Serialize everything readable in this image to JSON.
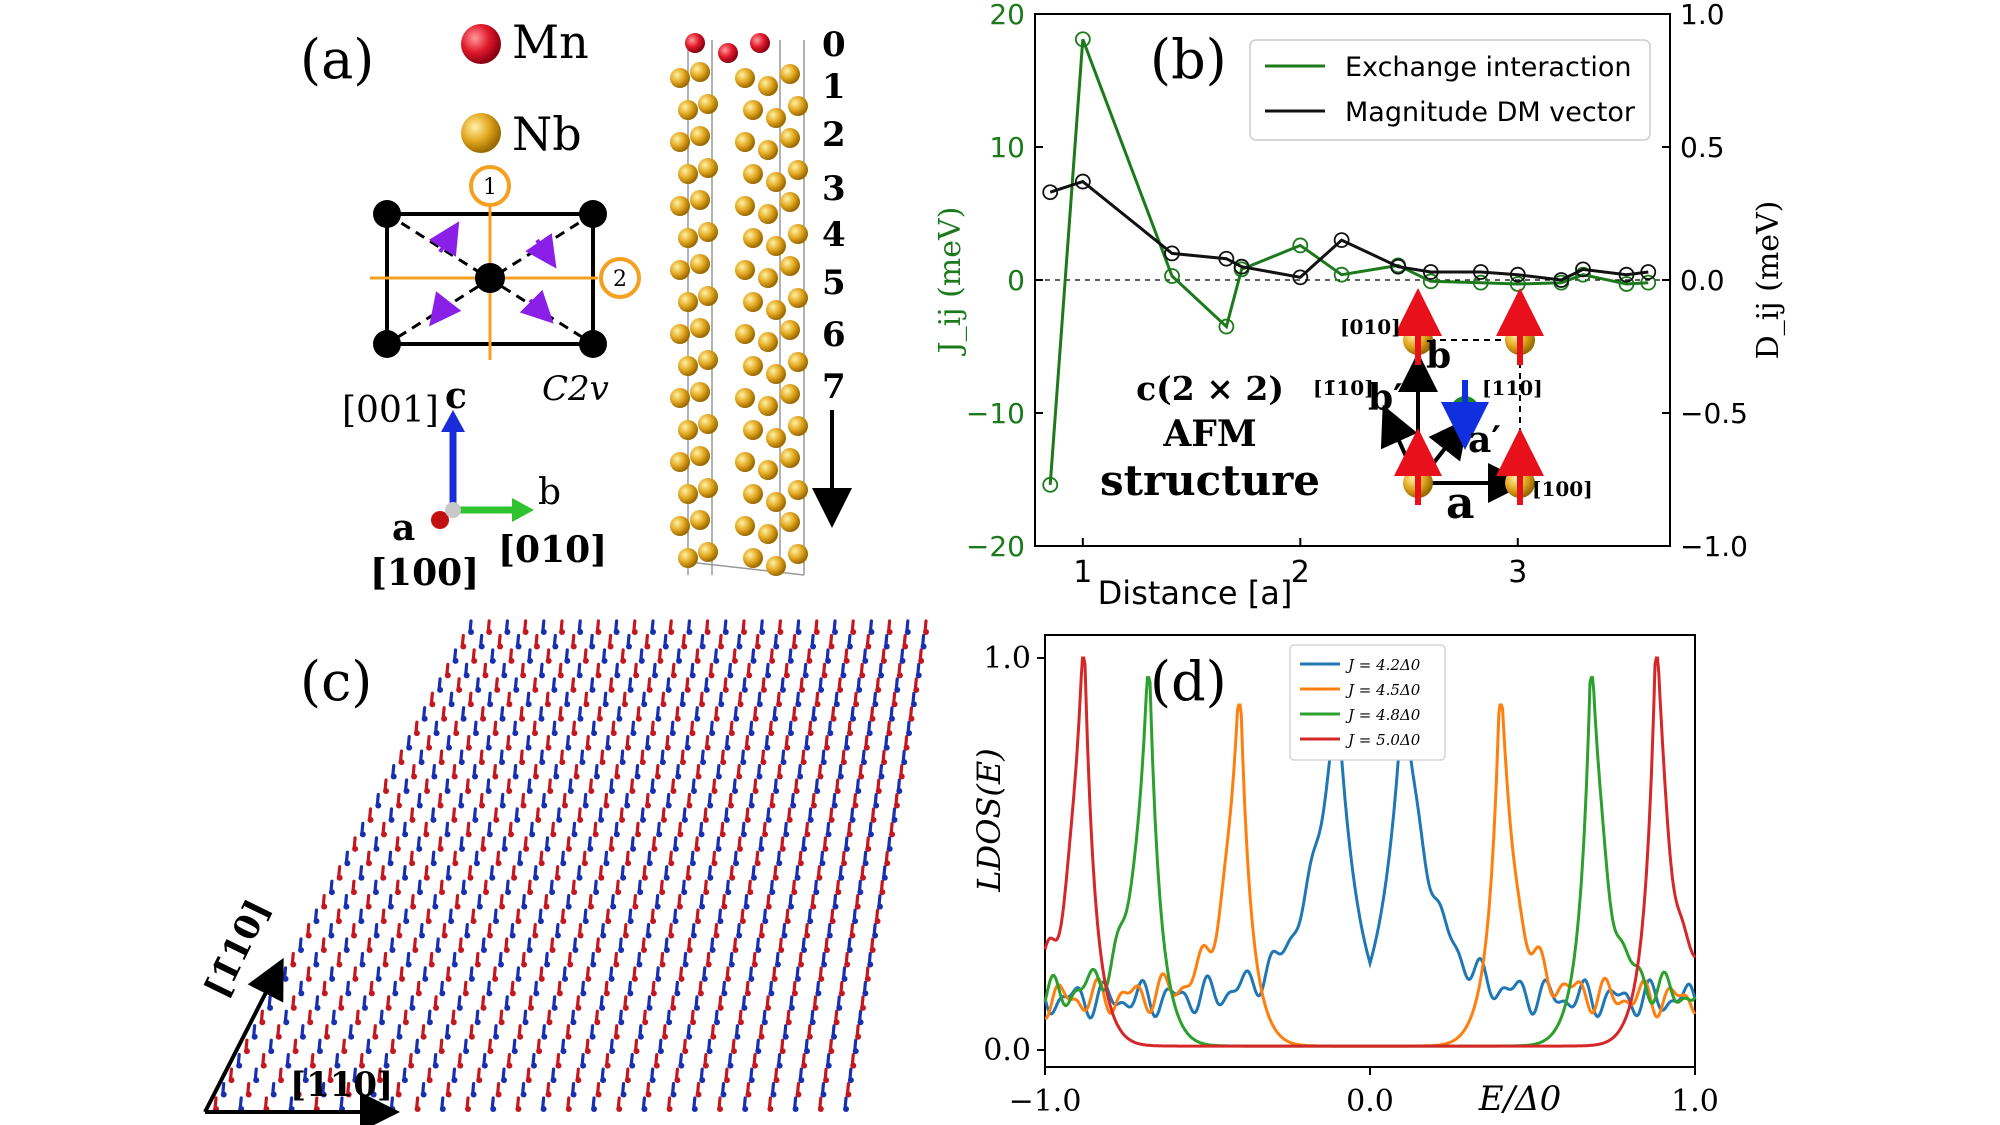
{
  "panel_labels": {
    "a": "(a)",
    "b": "(b)",
    "c": "(c)",
    "d": "(d)"
  },
  "panel_a": {
    "legend": [
      {
        "label": "Mn",
        "color": "#d8182a"
      },
      {
        "label": "Nb",
        "color": "#e3a820"
      }
    ],
    "symmetry_label": "C2v",
    "neighbor_1": "1",
    "neighbor_2": "2",
    "axes": {
      "c_letter": "c",
      "c_dir": "[001]",
      "b_letter": "b",
      "b_dir": "[010]",
      "a_letter": "a",
      "a_dir": "[100]"
    },
    "layers": [
      "0",
      "1",
      "2",
      "3",
      "4",
      "5",
      "6",
      "7"
    ]
  },
  "panel_c": {
    "dir_1": "[1̄10]",
    "dir_2": "[110]"
  },
  "chart_data": [
    {
      "type": "line",
      "panel": "b",
      "xlabel": "Distance [a]",
      "ylabel_left": "J_ij (meV)",
      "ylabel_right": "D_ij (meV)",
      "ylim_left": [
        -20,
        20
      ],
      "ylim_right": [
        -1.0,
        1.0
      ],
      "xlim": [
        0.78,
        3.7
      ],
      "xticks": [
        "1",
        "2",
        "3"
      ],
      "yticks_left": [
        "20",
        "10",
        "0",
        "−10",
        "−20"
      ],
      "yticks_right": [
        "1.0",
        "0.5",
        "0.0",
        "−0.5",
        "−1.0"
      ],
      "series": [
        {
          "name": "Exchange interaction",
          "color": "#1c7a1c",
          "axis": "left",
          "x": [
            0.85,
            1.0,
            1.41,
            1.66,
            1.73,
            2.0,
            2.19,
            2.45,
            2.6,
            2.83,
            3.0,
            3.2,
            3.3,
            3.5,
            3.6
          ],
          "y": [
            -15.4,
            18.1,
            0.3,
            -3.5,
            0.8,
            2.6,
            0.4,
            1.1,
            -0.1,
            -0.2,
            -0.3,
            -0.2,
            0.4,
            -0.3,
            -0.2
          ]
        },
        {
          "name": "Magnitude DM vector",
          "color": "#111111",
          "axis": "right",
          "x": [
            0.85,
            1.0,
            1.41,
            1.66,
            1.73,
            2.0,
            2.19,
            2.45,
            2.6,
            2.83,
            3.0,
            3.2,
            3.3,
            3.5,
            3.6
          ],
          "y": [
            0.33,
            0.37,
            0.1,
            0.08,
            0.05,
            0.01,
            0.15,
            0.05,
            0.03,
            0.03,
            0.02,
            0.0,
            0.04,
            0.02,
            0.03
          ]
        }
      ],
      "annotations": {
        "structure_line1": "c(2 × 2)",
        "structure_line2": "AFM",
        "structure_line3": "structure",
        "dir_010": "[010]",
        "dir_m110": "[1̄10]",
        "dir_110": "[110]",
        "dir_100": "[100]",
        "vec_a": "a",
        "vec_b": "b",
        "vec_a_prime": "a′",
        "vec_b_prime": "b′"
      }
    },
    {
      "type": "line",
      "panel": "d",
      "xlabel": "E/Δ0",
      "ylabel": "LDOS(E)",
      "xlim": [
        -1.0,
        1.0
      ],
      "ylim": [
        0.0,
        1.0
      ],
      "xticks": [
        "−1.0",
        "0.0",
        "1.0"
      ],
      "yticks": [
        "0.0",
        "1.0"
      ],
      "series": [
        {
          "name": "J = 4.2Δ0",
          "color": "#1f77b4",
          "peak_position": 0.1,
          "peak_height": 0.82,
          "gap_width": 0.06
        },
        {
          "name": "J = 4.5Δ0",
          "color": "#ff7f0e",
          "peak_position": 0.4,
          "peak_height": 0.88,
          "gap_width": 0.03
        },
        {
          "name": "J = 4.8Δ0",
          "color": "#2ca02c",
          "peak_position": 0.68,
          "peak_height": 0.95,
          "gap_width": 0.03
        },
        {
          "name": "J = 5.0Δ0",
          "color": "#d62728",
          "peak_position": 0.88,
          "peak_height": 1.0,
          "gap_width": 0.03
        }
      ]
    }
  ]
}
